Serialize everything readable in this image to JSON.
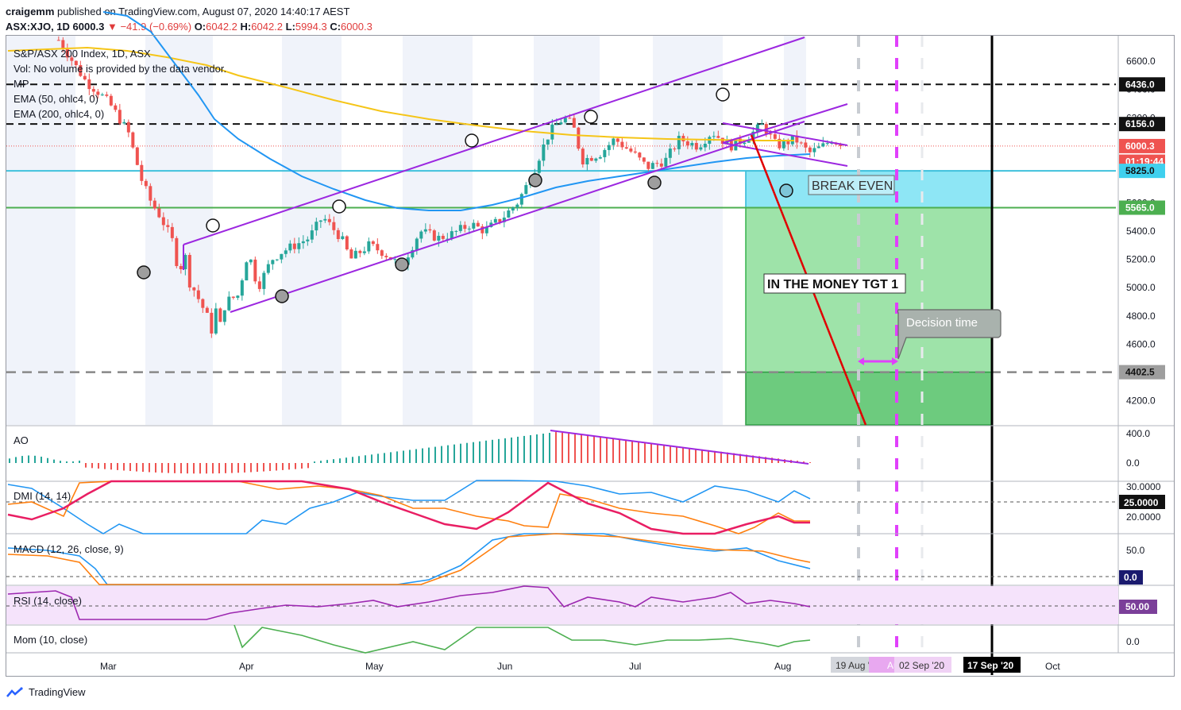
{
  "header": {
    "publisher": "craigemm",
    "published_text": "published on TradingView.com, August 07, 2020 14:40:17 AEST",
    "symbol": "ASX:XJO, 1D",
    "last": "6000.3",
    "change": "−41.9 (−0.69%)",
    "ohlc": {
      "o_label": "O:",
      "o": "6042.2",
      "h_label": "H:",
      "h": "6042.2",
      "l_label": "L:",
      "l": "5994.3",
      "c_label": "C:",
      "c": "6000.3"
    }
  },
  "legend": {
    "title": "S&P/ASX 200 Index, 1D, ASX",
    "vol": "Vol: No volume is provided by the data vendor.",
    "mp": "MP",
    "ema50": "EMA (50, ohlc4, 0)",
    "ema200": "EMA (200, ohlc4, 0)"
  },
  "pane_labels": {
    "ao": "AO",
    "dmi": "DMI (14, 14)",
    "macd": "MACD (12, 26, close, 9)",
    "rsi": "RSI (14, close)",
    "mom": "Mom (10, close)"
  },
  "annotations": {
    "break_even": "BREAK EVEN",
    "in_the_money": "IN THE MONEY TGT 1",
    "decision_time": "Decision time"
  },
  "footer": {
    "brand": "TradingView"
  },
  "colors": {
    "up": "#26a69a",
    "down": "#ef5350",
    "channel": "#9c27e0",
    "ema50": "#2196f3",
    "ema200": "#f5c518",
    "zone_blue": "#8ee6f5",
    "zone_green": "#9ee3a9",
    "zone_dark": "#6dcb7e",
    "red_line": "#e00000",
    "magenta": "#e040fb"
  },
  "chart_data": [
    {
      "type": "candlestick",
      "pane": "price",
      "title": "S&P/ASX 200 Index, 1D, ASX",
      "x_ticks": [
        "Mar",
        "Apr",
        "May",
        "Jun",
        "Jul",
        "Aug",
        "19 Aug '20",
        "Aug",
        "02 Sep '20",
        "17 Sep '20",
        "Oct"
      ],
      "y_ticks": [
        6600.0,
        6400.0,
        6200.0,
        6000.0,
        5800.0,
        5600.0,
        5400.0,
        5200.0,
        5000.0,
        4800.0,
        4600.0,
        4400.0,
        4200.0
      ],
      "ylim": [
        4030,
        6780
      ],
      "price_labels": [
        {
          "text": "6436.0",
          "value": 6436.0,
          "style": "black"
        },
        {
          "text": "6156.0",
          "value": 6156.0,
          "style": "black"
        },
        {
          "text": "6000.3",
          "value": 6000.3,
          "style": "red"
        },
        {
          "text": "01:19:44",
          "value": 5890,
          "style": "red"
        },
        {
          "text": "5825.0",
          "value": 5825.0,
          "style": "cyan"
        },
        {
          "text": "5565.0",
          "value": 5565.0,
          "style": "green"
        },
        {
          "text": "4402.5",
          "value": 4402.5,
          "style": "gray"
        }
      ],
      "levels": [
        6436.0,
        6156.0,
        5825.0,
        5565.0,
        4402.5
      ],
      "close_path": [
        [
          "Feb 20",
          6750
        ],
        [
          "Feb 24",
          6550
        ],
        [
          "Feb 26",
          6450
        ],
        [
          "Feb 28",
          6400
        ],
        [
          "Mar 2",
          6300
        ],
        [
          "Mar 4",
          6200
        ],
        [
          "Mar 6",
          6100
        ],
        [
          "Mar 9",
          5750
        ],
        [
          "Mar 11",
          5600
        ],
        [
          "Mar 13",
          5500
        ],
        [
          "Mar 16",
          5300
        ],
        [
          "Mar 17",
          5050
        ],
        [
          "Mar 18",
          5300
        ],
        [
          "Mar 19",
          5050
        ],
        [
          "Mar 20",
          5000
        ],
        [
          "Mar 23",
          4800
        ],
        [
          "Mar 24",
          4700
        ],
        [
          "Mar 25",
          4850
        ],
        [
          "Mar 26",
          4720
        ],
        [
          "Mar 27",
          4900
        ],
        [
          "Mar 30",
          4950
        ],
        [
          "Mar 31",
          5150
        ],
        [
          "Apr 1",
          5250
        ],
        [
          "Apr 3",
          5000
        ],
        [
          "Apr 6",
          5200
        ],
        [
          "Apr 8",
          5250
        ],
        [
          "Apr 14",
          5350
        ],
        [
          "Apr 17",
          5500
        ],
        [
          "Apr 21",
          5350
        ],
        [
          "Apr 23",
          5200
        ],
        [
          "Apr 27",
          5300
        ],
        [
          "Apr 30",
          5250
        ],
        [
          "May 4",
          5150
        ],
        [
          "May 8",
          5400
        ],
        [
          "May 12",
          5350
        ],
        [
          "May 15",
          5380
        ],
        [
          "May 19",
          5450
        ],
        [
          "May 22",
          5400
        ],
        [
          "May 26",
          5500
        ],
        [
          "May 29",
          5600
        ],
        [
          "Jun 1",
          5780
        ],
        [
          "Jun 3",
          5950
        ],
        [
          "Jun 5",
          6100
        ],
        [
          "Jun 8",
          6200
        ],
        [
          "Jun 10",
          6150
        ],
        [
          "Jun 12",
          5900
        ],
        [
          "Jun 16",
          5950
        ],
        [
          "Jun 19",
          6050
        ],
        [
          "Jun 23",
          5950
        ],
        [
          "Jun 26",
          5850
        ],
        [
          "Jun 30",
          5900
        ],
        [
          "Jul 3",
          6050
        ],
        [
          "Jul 7",
          6000
        ],
        [
          "Jul 10",
          6100
        ],
        [
          "Jul 14",
          6000
        ],
        [
          "Jul 17",
          6050
        ],
        [
          "Jul 21",
          6150
        ],
        [
          "Jul 24",
          6000
        ],
        [
          "Jul 28",
          6050
        ],
        [
          "Jul 31",
          5950
        ],
        [
          "Aug 3",
          6000
        ],
        [
          "Aug 5",
          6050
        ],
        [
          "Aug 7",
          6000.3
        ]
      ]
    },
    {
      "type": "bar",
      "pane": "AO",
      "y_ticks": [
        400.0,
        0.0
      ],
      "ylim": [
        -250,
        450
      ],
      "note": "histogram rising to ~420 in early June then falling to ~0"
    },
    {
      "type": "line",
      "pane": "DMI",
      "y_ticks": [
        30.0,
        25.0,
        20.0
      ],
      "ylim": [
        15,
        32
      ],
      "level": 25.0
    },
    {
      "type": "line",
      "pane": "MACD",
      "y_ticks": [
        50.0,
        0.0
      ],
      "ylim": [
        -10,
        75
      ],
      "level": 0.0
    },
    {
      "type": "line",
      "pane": "RSI",
      "y_ticks": [
        50.0
      ],
      "ylim": [
        30,
        70
      ],
      "level": 50.0
    },
    {
      "type": "line",
      "pane": "Mom",
      "y_ticks": [
        0.0
      ],
      "ylim": [
        -120,
        160
      ]
    }
  ]
}
